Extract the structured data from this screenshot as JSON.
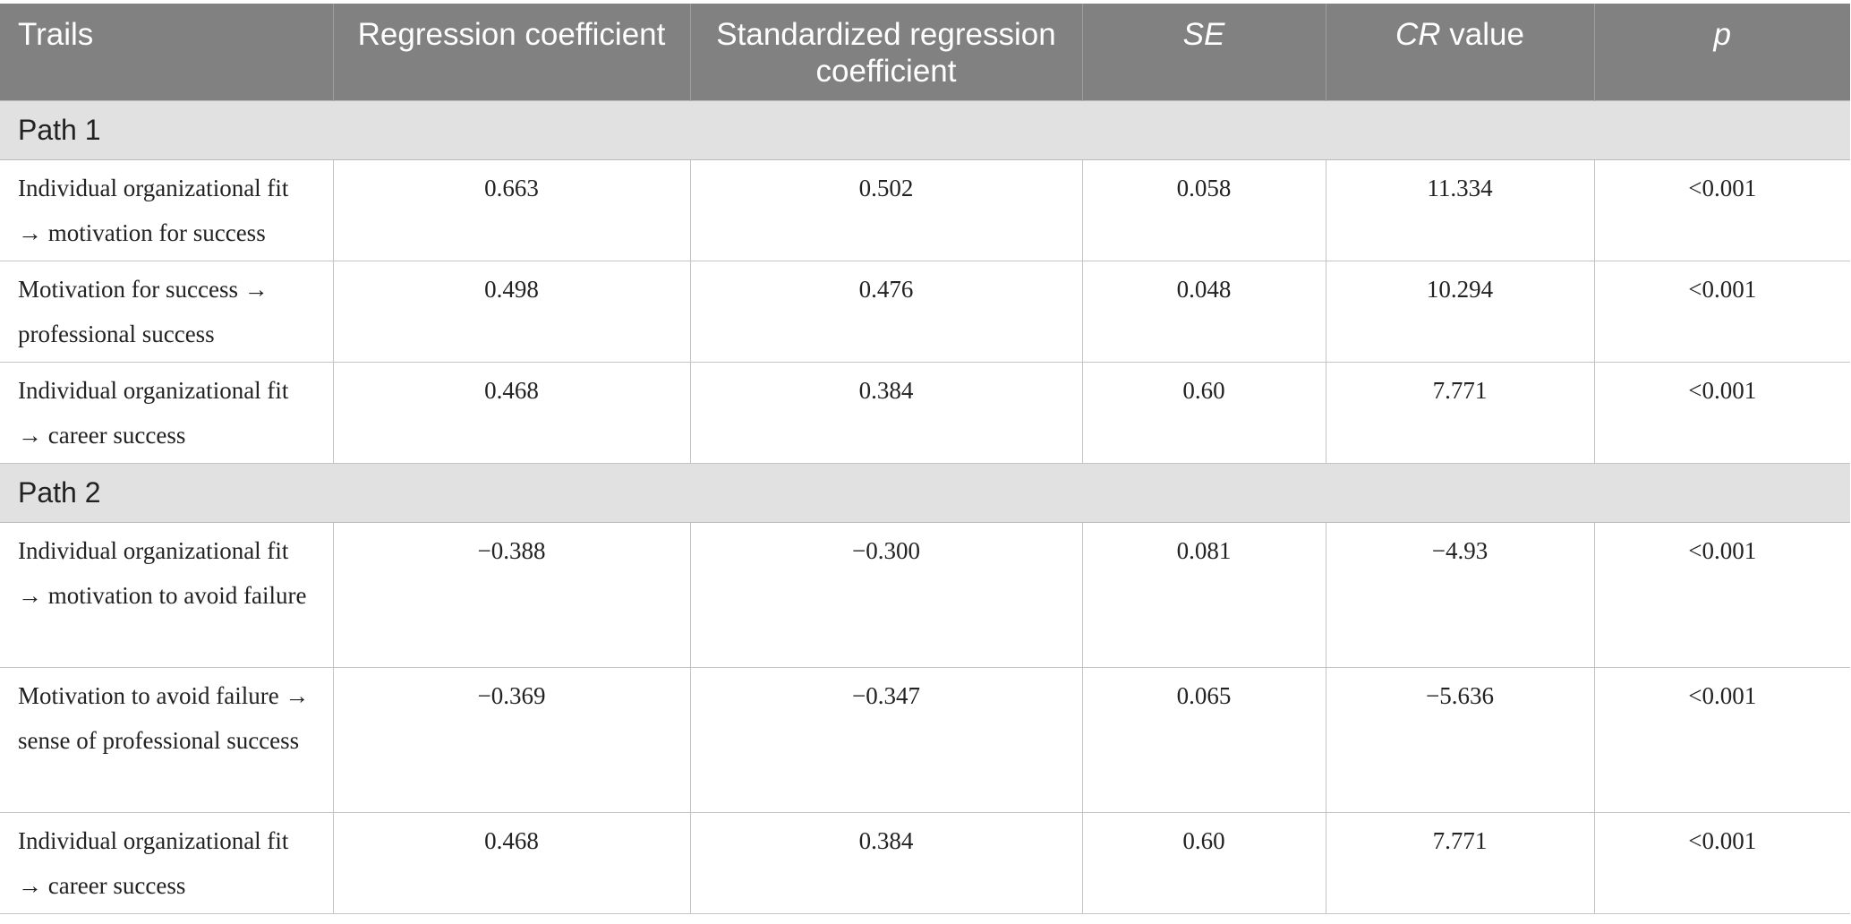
{
  "table": {
    "headers": {
      "trails": "Trails",
      "regression_coefficient": "Regression coefficient",
      "standardized_regression_coefficient": "Standardized regression coefficient",
      "se": "SE",
      "cr_prefix": "CR",
      "cr_suffix": " value",
      "p": "p"
    },
    "groups": [
      {
        "label": "Path 1",
        "rows": [
          {
            "trail": "Individual organizational fit → motivation for success",
            "regression": "0.663",
            "standardized": "0.502",
            "se": "0.058",
            "cr": "11.334",
            "p": "<0.001"
          },
          {
            "trail": "Motivation for success → professional success",
            "regression": "0.498",
            "standardized": "0.476",
            "se": "0.048",
            "cr": "10.294",
            "p": "<0.001"
          },
          {
            "trail": "Individual organizational fit → career success",
            "regression": "0.468",
            "standardized": "0.384",
            "se": "0.60",
            "cr": "7.771",
            "p": "<0.001"
          }
        ]
      },
      {
        "label": "Path 2",
        "rows": [
          {
            "trail": "Individual organizational fit → motivation to avoid failure",
            "regression": "−0.388",
            "standardized": "−0.300",
            "se": "0.081",
            "cr": "−4.93",
            "p": "<0.001"
          },
          {
            "trail": "Motivation to avoid failure → sense of professional success",
            "regression": "−0.369",
            "standardized": "−0.347",
            "se": "0.065",
            "cr": "−5.636",
            "p": "<0.001"
          },
          {
            "trail": "Individual organizational fit → career success",
            "regression": "0.468",
            "standardized": "0.384",
            "se": "0.60",
            "cr": "7.771",
            "p": "<0.001"
          }
        ]
      }
    ]
  }
}
